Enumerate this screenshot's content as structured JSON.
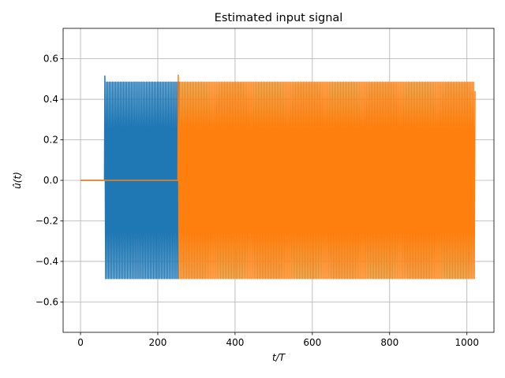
{
  "chart_data": {
    "type": "line",
    "title": "Estimated input signal",
    "xlabel": "t/T",
    "ylabel": "û(t)",
    "xlim": [
      -45,
      1070
    ],
    "ylim": [
      -0.75,
      0.75
    ],
    "xticks": [
      0,
      200,
      400,
      600,
      800,
      1000
    ],
    "yticks": [
      -0.6,
      -0.4,
      -0.2,
      0.0,
      0.2,
      0.4,
      0.6
    ],
    "xtick_labels": [
      "0",
      "200",
      "400",
      "600",
      "800",
      "1000"
    ],
    "ytick_labels": [
      "−0.6",
      "−0.4",
      "−0.2",
      "0.0",
      "0.2",
      "0.4",
      "0.6"
    ],
    "grid": true,
    "series": [
      {
        "color": "#1f77b4",
        "zero_until": 62,
        "oscillation_start": 62,
        "oscillation_end": 256,
        "amplitude": 0.485,
        "initial_peak": 0.515,
        "period": 4,
        "tail_value": 0.0
      },
      {
        "color": "#ff7f0e",
        "zero_until": 252,
        "oscillation_start": 252,
        "oscillation_end": 1020,
        "amplitude": 0.485,
        "initial_peak": 0.52,
        "period": 4,
        "final_value": 0.44
      }
    ]
  }
}
